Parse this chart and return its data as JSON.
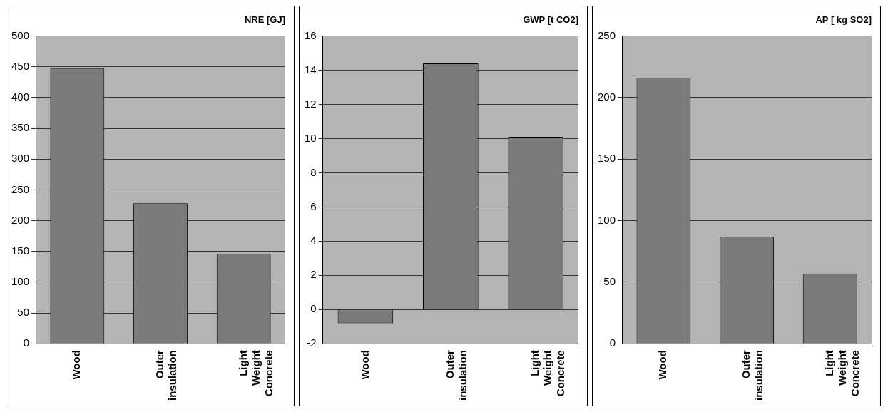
{
  "chart_data": [
    {
      "type": "bar",
      "title": "NRE [GJ]",
      "categories": [
        "Wood",
        "Outer insulation",
        "Light Weight Concrete"
      ],
      "values": [
        447,
        228,
        146
      ],
      "color": "#7a7a7a",
      "ylim": [
        0,
        500
      ],
      "yticks": [
        0,
        50,
        100,
        150,
        200,
        250,
        300,
        350,
        400,
        450,
        500
      ],
      "grid": "y"
    },
    {
      "type": "bar",
      "title": "GWP [t CO2]",
      "categories": [
        "Wood",
        "Outer insulation",
        "Light Weight Concrete"
      ],
      "values": [
        -0.8,
        14.4,
        10.1
      ],
      "color": "#7a7a7a",
      "ylim": [
        -2,
        16
      ],
      "yticks": [
        -2,
        0,
        2,
        4,
        6,
        8,
        10,
        12,
        14,
        16
      ],
      "grid": "y"
    },
    {
      "type": "bar",
      "title": "AP [ kg SO2]",
      "categories": [
        "Wood",
        "Outer insulation",
        "Light Weight Concrete"
      ],
      "values": [
        216,
        87,
        57
      ],
      "color": "#7a7a7a",
      "ylim": [
        0,
        250
      ],
      "yticks": [
        0,
        50,
        100,
        150,
        200,
        250
      ],
      "grid": "y"
    }
  ]
}
